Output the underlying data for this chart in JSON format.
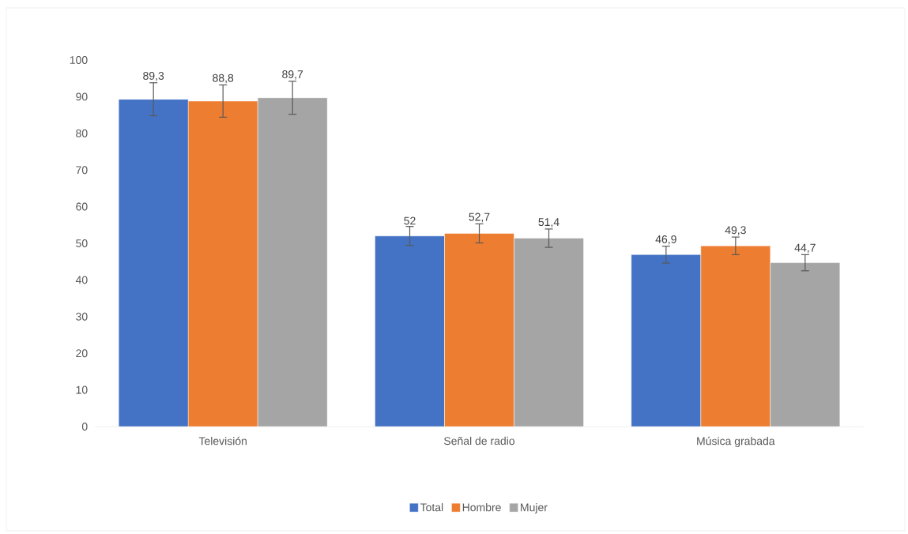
{
  "chart_data": {
    "type": "bar",
    "categories": [
      "Televisión",
      "Señal de radio",
      "Música grabada"
    ],
    "series": [
      {
        "name": "Total",
        "color": "#4472c4",
        "values": [
          89.3,
          52,
          46.9
        ],
        "errors": [
          4.5,
          2.6,
          2.3
        ],
        "value_labels": [
          "89,3",
          "52",
          "46,9"
        ]
      },
      {
        "name": "Hombre",
        "color": "#ed7d31",
        "values": [
          88.8,
          52.7,
          49.3
        ],
        "errors": [
          4.4,
          2.6,
          2.4
        ],
        "value_labels": [
          "88,8",
          "52,7",
          "49,3"
        ]
      },
      {
        "name": "Mujer",
        "color": "#a5a5a5",
        "values": [
          89.7,
          51.4,
          44.7
        ],
        "errors": [
          4.5,
          2.5,
          2.2
        ],
        "value_labels": [
          "89,7",
          "51,4",
          "44,7"
        ]
      }
    ],
    "ylim": [
      0,
      100
    ],
    "yticks": [
      0,
      10,
      20,
      30,
      40,
      50,
      60,
      70,
      80,
      90,
      100
    ],
    "legend": "bottom"
  }
}
